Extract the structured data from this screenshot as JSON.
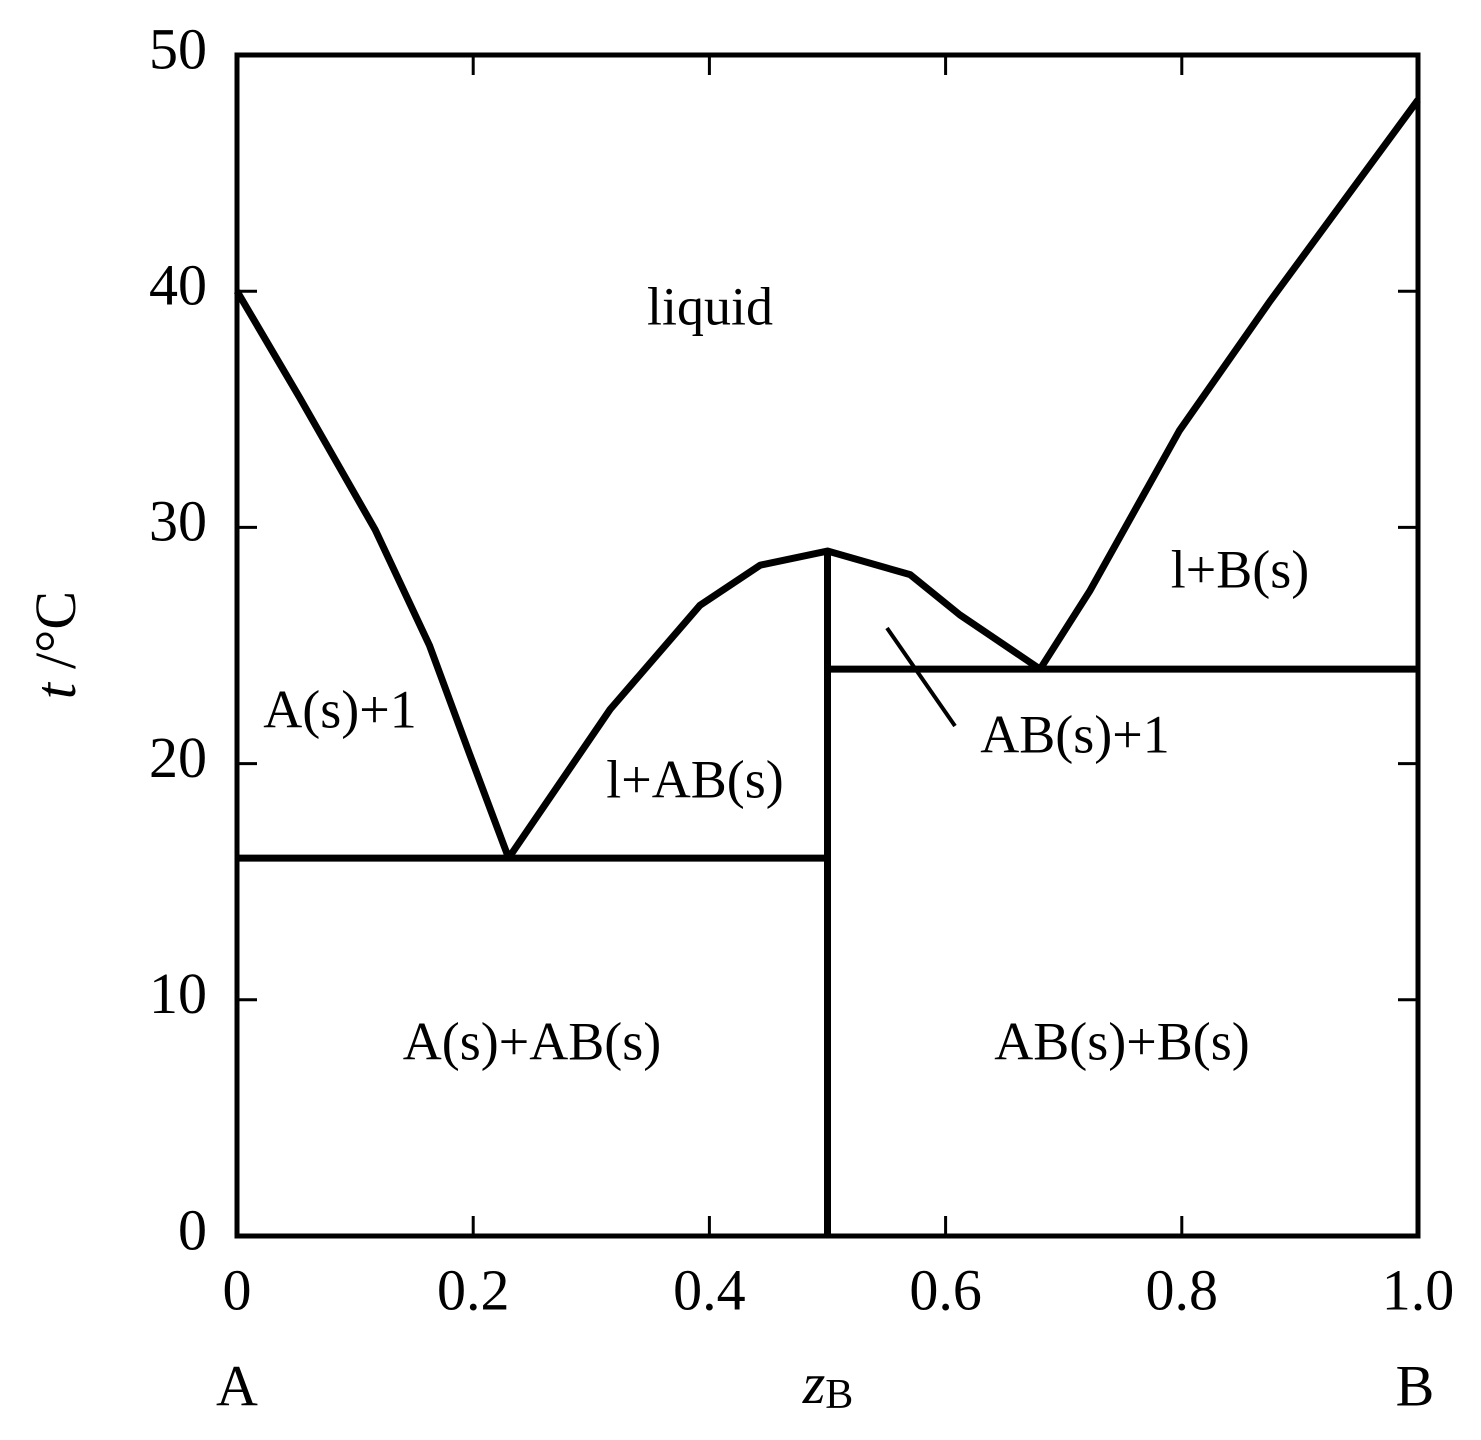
{
  "chart_data": {
    "type": "line",
    "xlabel": {
      "symbol": "z",
      "subscript": "B"
    },
    "ylabel": {
      "symbol": "t",
      "rest": "/°C"
    },
    "x_end_labels": [
      "A",
      "B"
    ],
    "xlim": [
      0,
      1
    ],
    "ylim": [
      0,
      50
    ],
    "xticks": [
      0,
      0.2,
      0.4,
      0.6,
      0.8,
      {
        "value": 1,
        "label": "1.0"
      }
    ],
    "yticks": [
      0,
      10,
      20,
      30,
      40,
      50
    ],
    "color": "#000000",
    "series": [
      {
        "x": [
          0,
          0.053,
          0.117,
          0.163,
          0.197,
          0.23
        ],
        "values": [
          40,
          35.5,
          29.9,
          25,
          20.4,
          16
        ]
      },
      {
        "x": [
          0.23,
          0.316,
          0.392,
          0.443,
          0.5,
          0.57,
          0.612,
          0.68
        ],
        "values": [
          16,
          22.3,
          26.7,
          28.4,
          29,
          28,
          26.3,
          24
        ]
      },
      {
        "x": [
          0.68,
          0.722,
          0.798,
          0.875,
          1
        ],
        "values": [
          24,
          27.3,
          34.1,
          39.6,
          48.1
        ]
      },
      {
        "x": [
          0,
          0.5
        ],
        "values": [
          16,
          16
        ]
      },
      {
        "x": [
          0.5,
          1
        ],
        "values": [
          24,
          24
        ]
      },
      {
        "x": [
          0.5,
          0.5
        ],
        "values": [
          0,
          29
        ]
      }
    ],
    "annotations": [
      "liquid",
      "A(s)+1",
      "l+AB(s)",
      "l+B(s)",
      "AB(s)+1",
      "A(s)+AB(s)",
      "AB(s)+B(s)"
    ]
  }
}
